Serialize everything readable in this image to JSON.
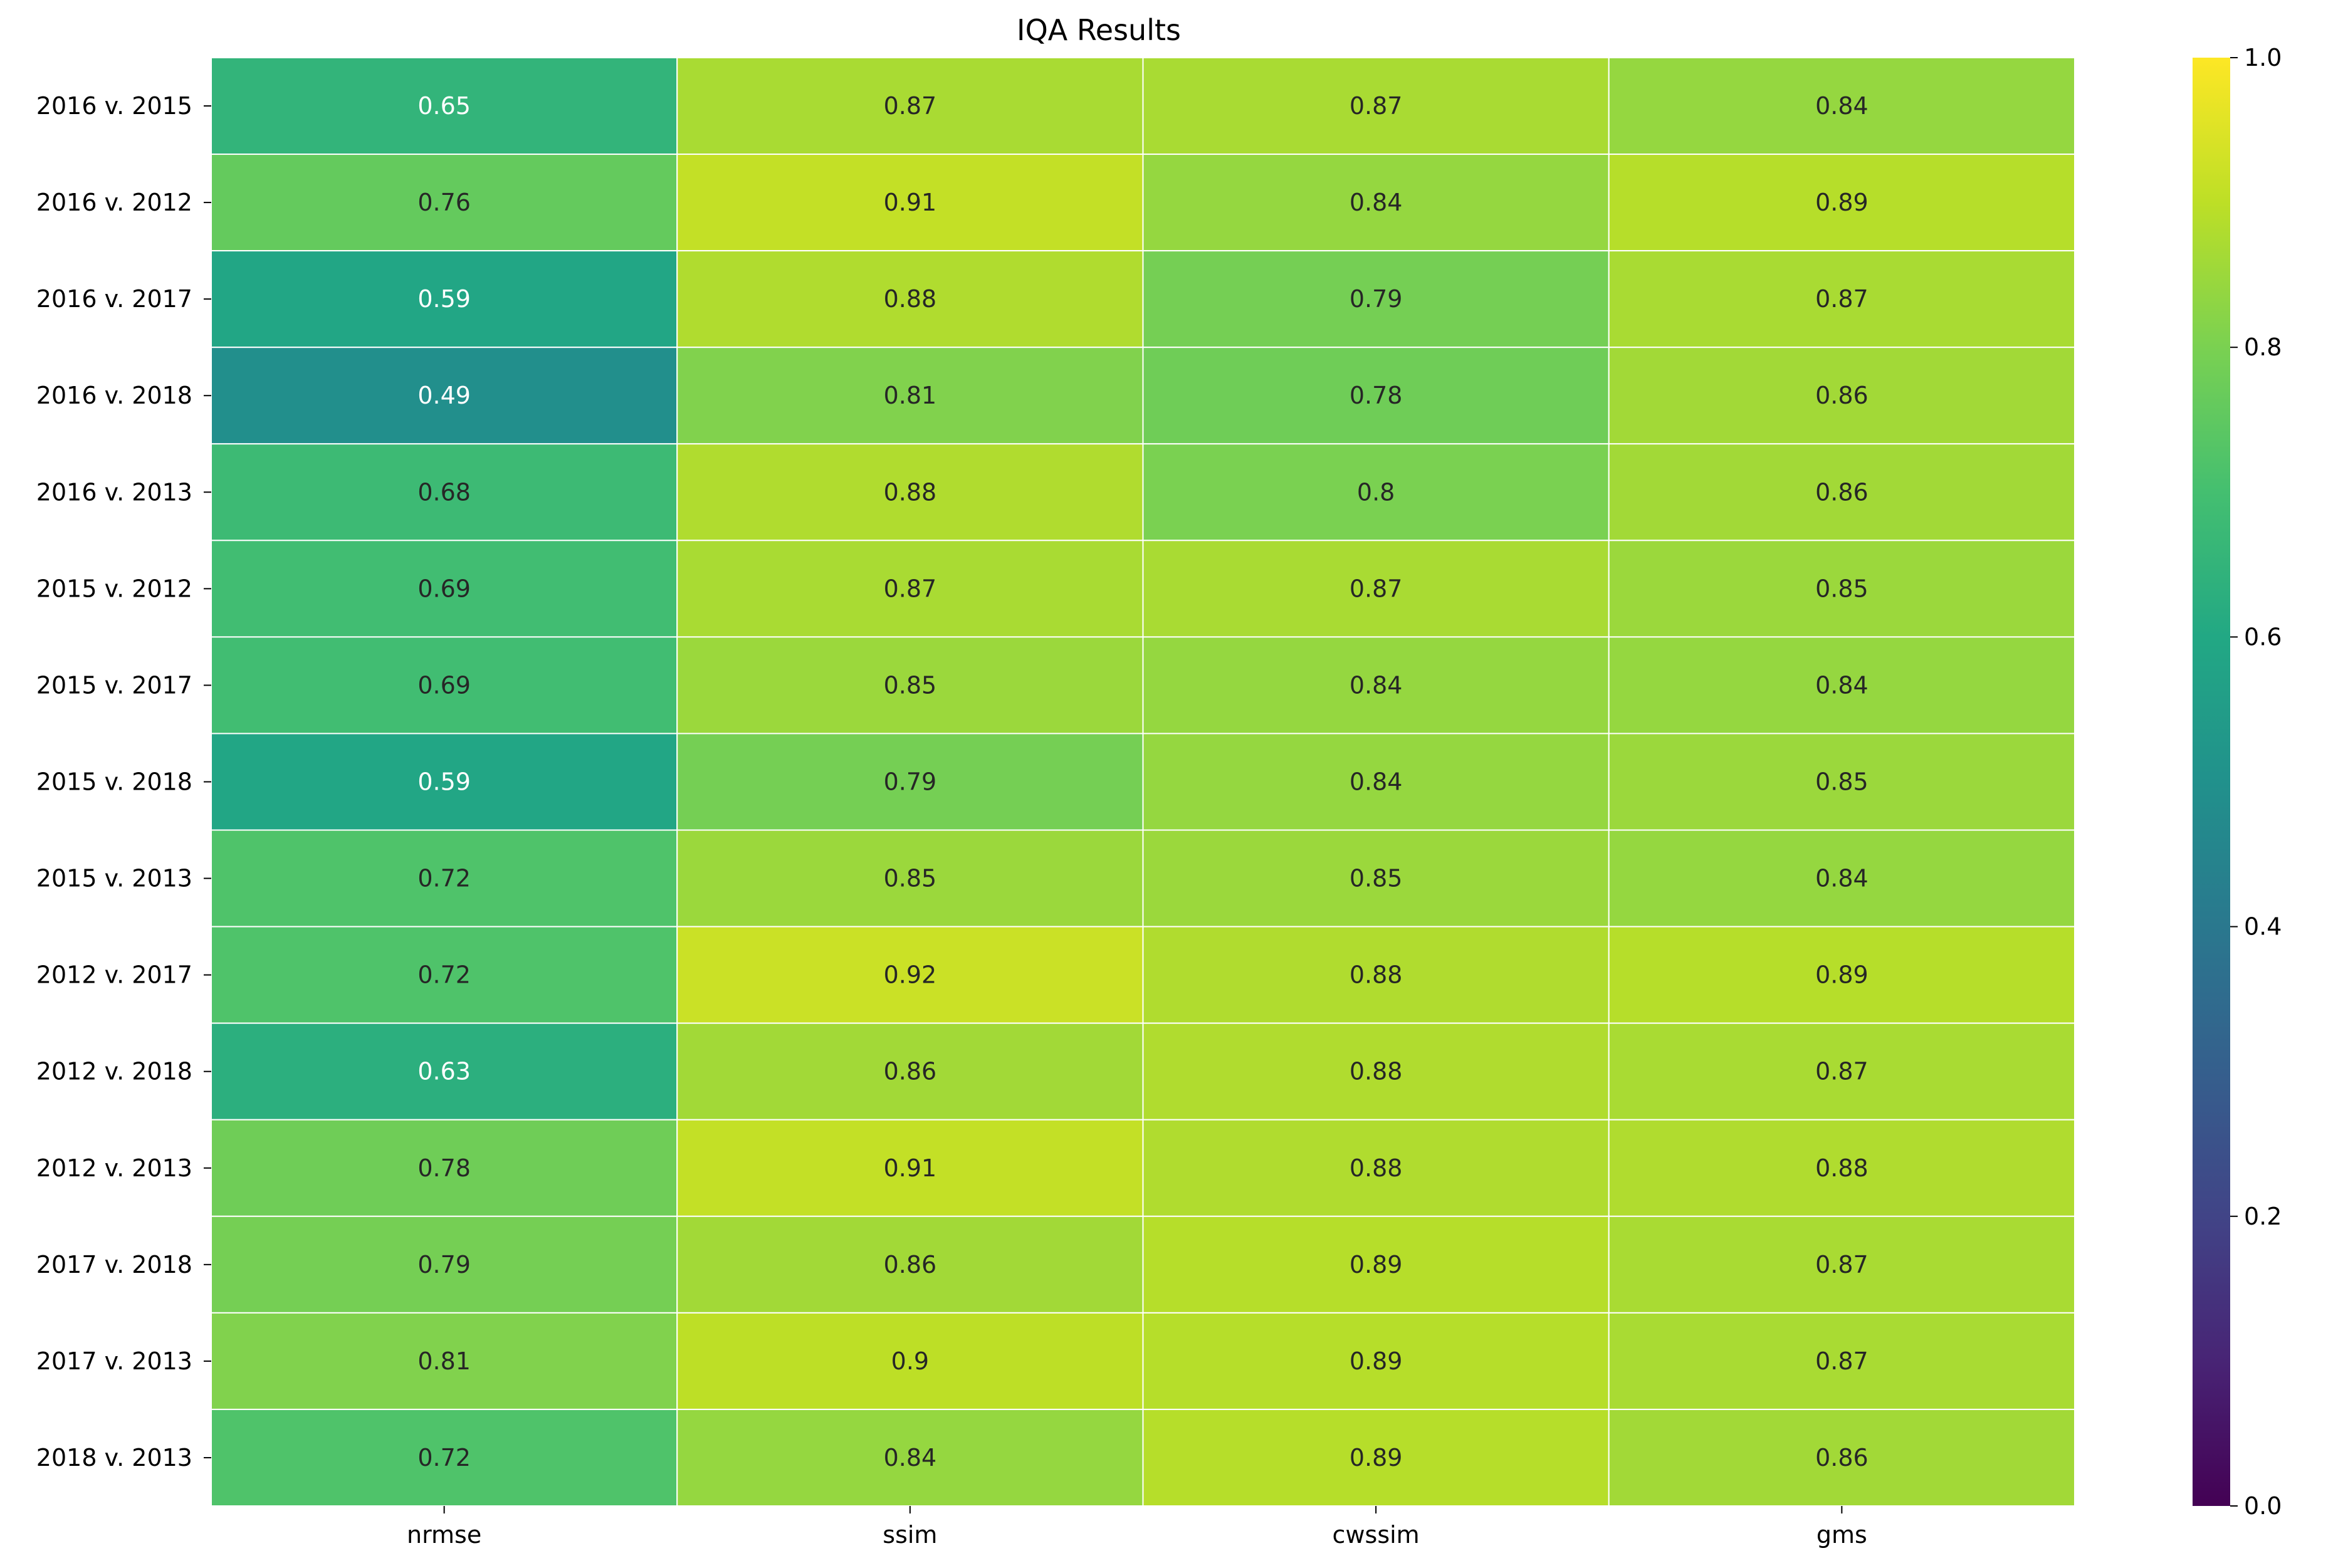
{
  "chart_data": {
    "type": "heatmap",
    "title": "IQA Results",
    "xlabel": "",
    "ylabel": "",
    "columns": [
      "nrmse",
      "ssim",
      "cwssim",
      "gms"
    ],
    "rows": [
      "2016 v. 2015",
      "2016 v. 2012",
      "2016 v. 2017",
      "2016 v. 2018",
      "2016 v. 2013",
      "2015 v. 2012",
      "2015 v. 2017",
      "2015 v. 2018",
      "2015 v. 2013",
      "2012 v. 2017",
      "2012 v. 2018",
      "2012 v. 2013",
      "2017 v. 2018",
      "2017 v. 2013",
      "2018 v. 2013"
    ],
    "values": [
      [
        0.65,
        0.87,
        0.87,
        0.84
      ],
      [
        0.76,
        0.91,
        0.84,
        0.89
      ],
      [
        0.59,
        0.88,
        0.79,
        0.87
      ],
      [
        0.49,
        0.81,
        0.78,
        0.86
      ],
      [
        0.68,
        0.88,
        0.8,
        0.86
      ],
      [
        0.69,
        0.87,
        0.87,
        0.85
      ],
      [
        0.69,
        0.85,
        0.84,
        0.84
      ],
      [
        0.59,
        0.79,
        0.84,
        0.85
      ],
      [
        0.72,
        0.85,
        0.85,
        0.84
      ],
      [
        0.72,
        0.92,
        0.88,
        0.89
      ],
      [
        0.63,
        0.86,
        0.88,
        0.87
      ],
      [
        0.78,
        0.91,
        0.88,
        0.88
      ],
      [
        0.79,
        0.86,
        0.89,
        0.87
      ],
      [
        0.81,
        0.9,
        0.89,
        0.87
      ],
      [
        0.72,
        0.84,
        0.89,
        0.86
      ]
    ],
    "labels": [
      [
        "0.65",
        "0.87",
        "0.87",
        "0.84"
      ],
      [
        "0.76",
        "0.91",
        "0.84",
        "0.89"
      ],
      [
        "0.59",
        "0.88",
        "0.79",
        "0.87"
      ],
      [
        "0.49",
        "0.81",
        "0.78",
        "0.86"
      ],
      [
        "0.68",
        "0.88",
        "0.8",
        "0.86"
      ],
      [
        "0.69",
        "0.87",
        "0.87",
        "0.85"
      ],
      [
        "0.69",
        "0.85",
        "0.84",
        "0.84"
      ],
      [
        "0.59",
        "0.79",
        "0.84",
        "0.85"
      ],
      [
        "0.72",
        "0.85",
        "0.85",
        "0.84"
      ],
      [
        "0.72",
        "0.92",
        "0.88",
        "0.89"
      ],
      [
        "0.63",
        "0.86",
        "0.88",
        "0.87"
      ],
      [
        "0.78",
        "0.91",
        "0.88",
        "0.88"
      ],
      [
        "0.79",
        "0.86",
        "0.89",
        "0.87"
      ],
      [
        "0.81",
        "0.9",
        "0.89",
        "0.87"
      ],
      [
        "0.72",
        "0.84",
        "0.89",
        "0.86"
      ]
    ],
    "colorbar": {
      "colormap": "viridis",
      "vmin": 0.0,
      "vmax": 1.0,
      "ticks": [
        0.0,
        0.2,
        0.4,
        0.6,
        0.8,
        1.0
      ],
      "tick_labels": [
        "0.0",
        "0.2",
        "0.4",
        "0.6",
        "0.8",
        "1.0"
      ]
    },
    "grid": false,
    "cell_separator_color": "#ffffff",
    "annotation_colors": {
      "dark": "#262626",
      "light": "#ffffff"
    }
  }
}
